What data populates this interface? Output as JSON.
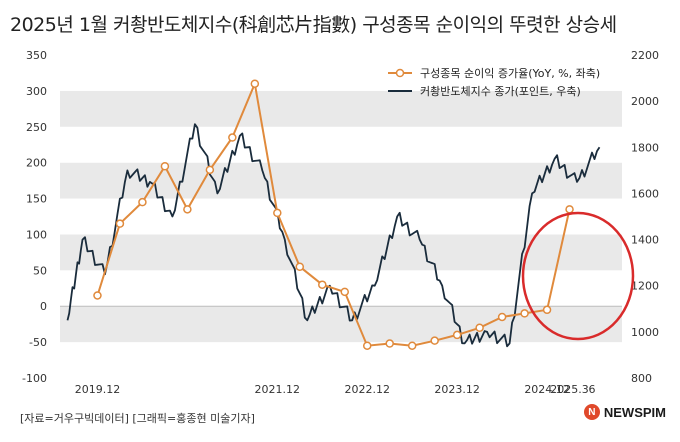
{
  "title": "2025년 1월 커촹반도체지수(科創芯片指數) 구성종목 순이익의 뚜렷한 상승세",
  "source": "[자료=거우구빅데이터] [그래픽=홍종현 미술기자]",
  "logo_text": "NEWSPIM",
  "chart_data": {
    "type": "line",
    "title": "2025년 1월 커촹반도체지수(科創芯片指數) 구성종목 순이익의 뚜렷한 상승세",
    "x_tick_labels": [
      "2019.12",
      "2021.12",
      "2022.12",
      "2023.12",
      "2024.12",
      "2025.3",
      "6"
    ],
    "left_axis": {
      "ylim": [
        -100,
        350
      ],
      "ticks": [
        -100,
        -50,
        0,
        50,
        100,
        150,
        200,
        250,
        300,
        350
      ]
    },
    "right_axis": {
      "ylim": [
        800,
        2200
      ],
      "ticks": [
        800,
        1000,
        1200,
        1400,
        1600,
        1800,
        2000,
        2200
      ]
    },
    "grid": "horizontal bands",
    "legend_position": "top-right",
    "series": [
      {
        "name": "구성종목 순이익 증가율(YoY, %, 좌축)",
        "axis": "left",
        "color": "#e08a3c",
        "marker": "circle",
        "x": [
          "2019.12",
          "2020.03",
          "2020.06",
          "2020.09",
          "2020.12",
          "2021.03",
          "2021.06",
          "2021.09",
          "2021.12",
          "2022.03",
          "2022.06",
          "2022.09",
          "2022.12",
          "2023.03",
          "2023.06",
          "2023.09",
          "2023.12",
          "2024.03",
          "2024.06",
          "2024.09",
          "2024.12",
          "2025.03"
        ],
        "values": [
          15,
          115,
          145,
          195,
          135,
          190,
          235,
          310,
          130,
          55,
          30,
          20,
          -55,
          -52,
          -55,
          -48,
          -40,
          -30,
          -15,
          -10,
          -5,
          135
        ]
      },
      {
        "name": "커촹반도체지수 종가(포인트, 우축)",
        "axis": "right",
        "color": "#1a2c3c",
        "x": [
          "2019.08",
          "2019.10",
          "2020.01",
          "2020.04",
          "2020.07",
          "2020.10",
          "2021.01",
          "2021.04",
          "2021.07",
          "2021.10",
          "2022.01",
          "2022.04",
          "2022.07",
          "2022.10",
          "2023.01",
          "2023.04",
          "2023.07",
          "2023.10",
          "2024.01",
          "2024.04",
          "2024.07",
          "2024.10",
          "2025.01",
          "2025.04",
          "2025.07"
        ],
        "values": [
          1050,
          1400,
          1250,
          1700,
          1650,
          1500,
          1900,
          1600,
          1850,
          1700,
          1400,
          1050,
          1200,
          1050,
          1200,
          1500,
          1400,
          1200,
          950,
          1000,
          950,
          1600,
          1750,
          1650,
          1800
        ]
      }
    ]
  }
}
